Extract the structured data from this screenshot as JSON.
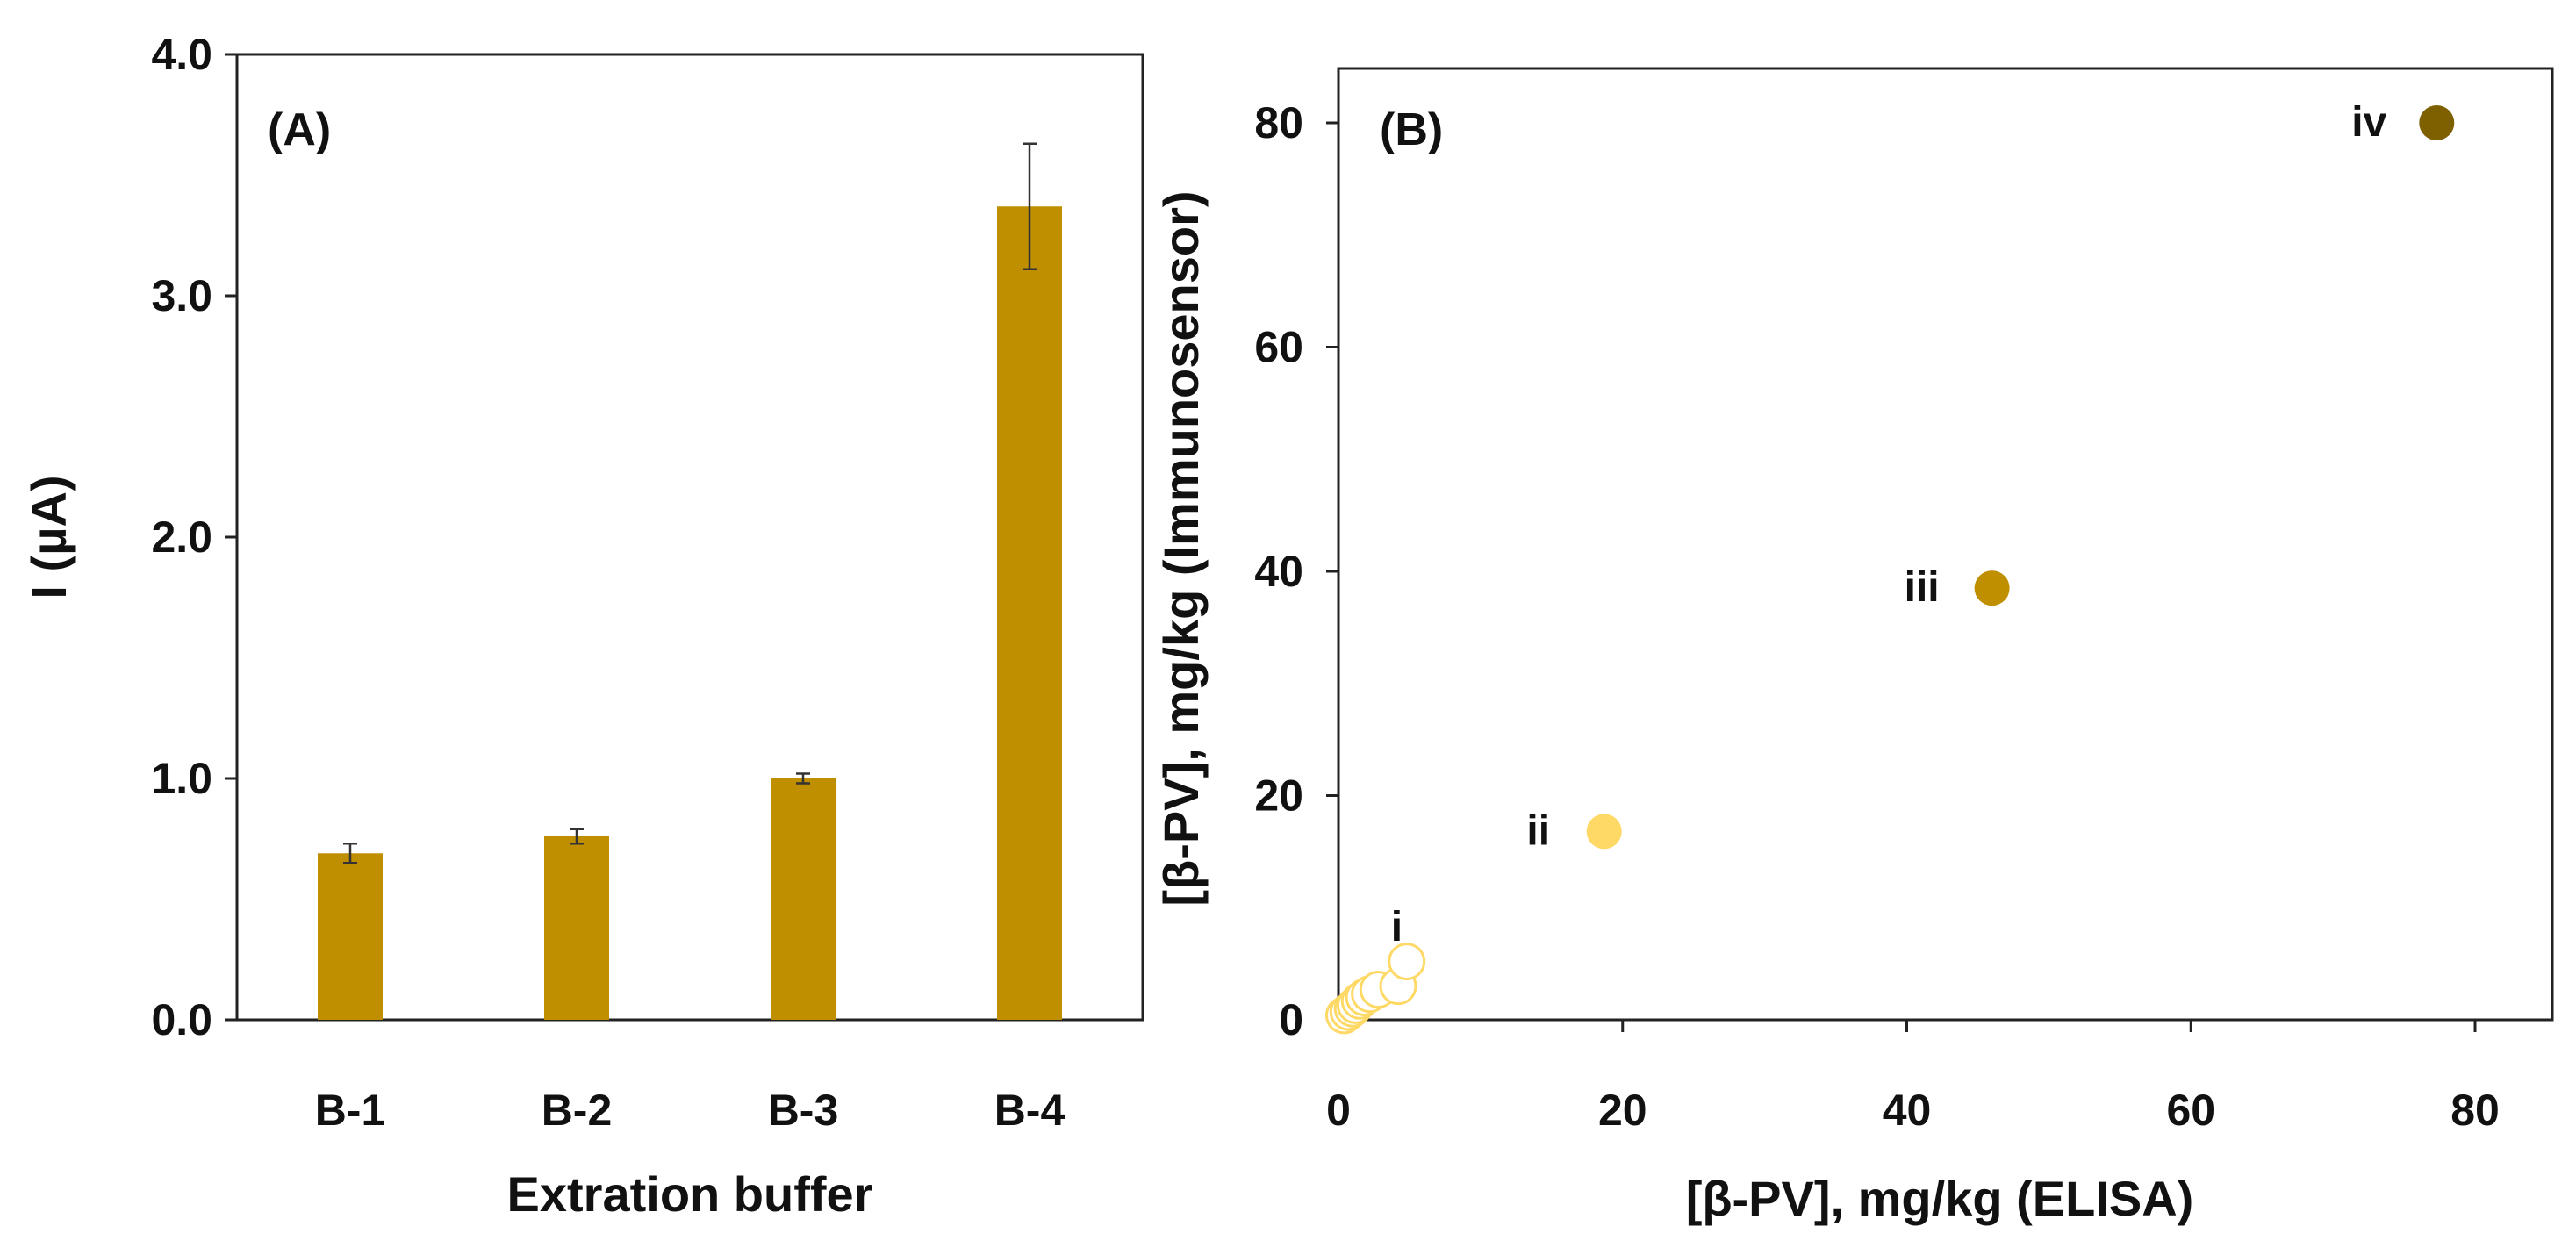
{
  "colors": {
    "bar": "#BF8F00",
    "point_i_fill": "#FFFFFF",
    "point_i_stroke": "#FFD966",
    "point_ii": "#FFD966",
    "point_iii": "#BF8F00",
    "point_iv": "#7F6000"
  },
  "chart_data": [
    {
      "type": "bar",
      "panel_label": "(A)",
      "categories": [
        "B-1",
        "B-2",
        "B-3",
        "B-4"
      ],
      "values": [
        0.69,
        0.76,
        1.0,
        3.37
      ],
      "errors": [
        0.04,
        0.03,
        0.02,
        0.26
      ],
      "xlabel": "Extration buffer",
      "ylabel": "I (µA)",
      "ylim": [
        0,
        4
      ],
      "yticks": [
        0,
        1,
        2,
        3,
        4
      ],
      "ytick_labels": [
        "0.0",
        "1.0",
        "2.0",
        "3.0",
        "4.0"
      ],
      "grid": false
    },
    {
      "type": "scatter",
      "panel_label": "(B)",
      "xlabel": "[β-PV], mg/kg (ELISA)",
      "ylabel": "[β-PV], mg/kg (Immunosensor)",
      "xlim": [
        0,
        85
      ],
      "ylim": [
        0,
        85
      ],
      "xticks": [
        0,
        20,
        40,
        60,
        80
      ],
      "yticks": [
        0,
        20,
        40,
        60,
        80
      ],
      "xtick_labels": [
        "0",
        "20",
        "40",
        "60",
        "80"
      ],
      "ytick_labels": [
        "0",
        "20",
        "40",
        "60",
        "80"
      ],
      "grid": false,
      "groups": [
        {
          "label": "i",
          "style": "hollow",
          "points": [
            [
              0.4,
              0.4
            ],
            [
              0.7,
              0.7
            ],
            [
              1.0,
              1.0
            ],
            [
              1.2,
              1.3
            ],
            [
              1.5,
              1.7
            ],
            [
              1.8,
              2.0
            ],
            [
              2.2,
              2.3
            ],
            [
              2.8,
              2.7
            ],
            [
              4.2,
              3.0
            ],
            [
              4.8,
              5.2
            ]
          ]
        },
        {
          "label": "ii",
          "style": "filled",
          "points": [
            [
              18.7,
              16.8
            ]
          ]
        },
        {
          "label": "iii",
          "style": "filled",
          "points": [
            [
              46.0,
              38.5
            ]
          ]
        },
        {
          "label": "iv",
          "style": "filled",
          "points": [
            [
              77.3,
              80.0
            ]
          ]
        }
      ]
    }
  ]
}
